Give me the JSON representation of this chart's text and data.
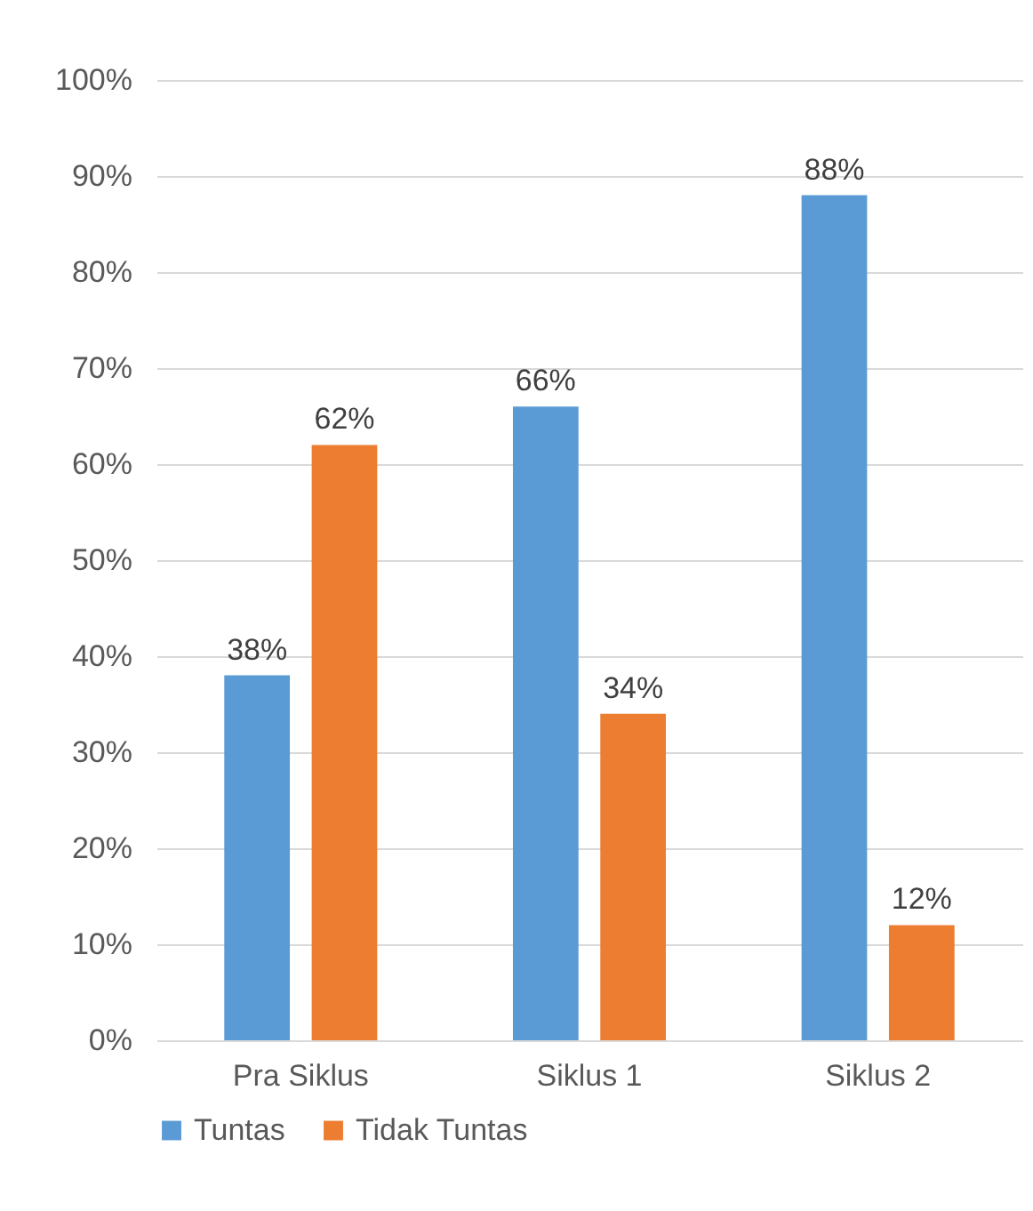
{
  "chart_data": {
    "type": "bar",
    "categories": [
      "Pra Siklus",
      "Siklus 1",
      "Siklus 2"
    ],
    "series": [
      {
        "name": "Tuntas",
        "color": "#5b9bd5",
        "values": [
          38,
          66,
          88
        ],
        "value_labels": [
          "38%",
          "66%",
          "88%"
        ]
      },
      {
        "name": "Tidak Tuntas",
        "color": "#ed7d31",
        "values": [
          62,
          34,
          12
        ],
        "value_labels": [
          "62%",
          "34%",
          "12%"
        ]
      }
    ],
    "ylim": [
      0,
      100
    ],
    "yticks": [
      {
        "value": 0,
        "label": "0%"
      },
      {
        "value": 10,
        "label": "10%"
      },
      {
        "value": 20,
        "label": "20%"
      },
      {
        "value": 30,
        "label": "30%"
      },
      {
        "value": 40,
        "label": "40%"
      },
      {
        "value": 50,
        "label": "50%"
      },
      {
        "value": 60,
        "label": "60%"
      },
      {
        "value": 70,
        "label": "70%"
      },
      {
        "value": 80,
        "label": "80%"
      },
      {
        "value": 90,
        "label": "90%"
      },
      {
        "value": 100,
        "label": "100%"
      }
    ],
    "grid": "y",
    "legend": "bottom"
  }
}
